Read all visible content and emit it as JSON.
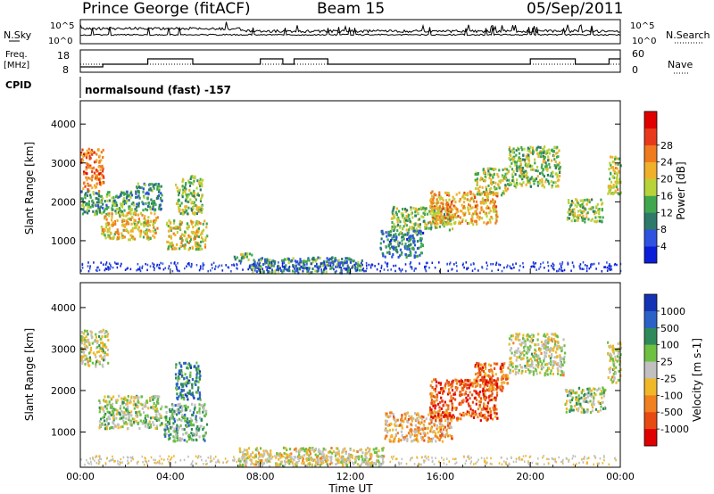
{
  "header": {
    "station": "Prince George (fitACF)",
    "beam": "Beam 15",
    "date": "05/Sep/2011"
  },
  "top_panels": {
    "nsky_label": "N.Sky",
    "nsearch_label": "N.Search",
    "top_tick_exp": "10^5",
    "bottom_tick_exp": "10^0",
    "freq_label_1": "Freq.",
    "freq_label_2": "[MHz]",
    "freq_ticks": [
      "18",
      "8"
    ],
    "nave_label": "Nave",
    "nave_ticks": [
      "60",
      "0"
    ],
    "cpid_label": "CPID",
    "cpid_text": "normalsound (fast) -157"
  },
  "chart_data": [
    {
      "type": "heatmap",
      "name": "power",
      "ylabel": "Slant Range [km]",
      "yticks": [
        1000,
        2000,
        3000,
        4000
      ],
      "ylim": [
        150,
        4600
      ],
      "xlim_hours": [
        0,
        24
      ],
      "colorbar": {
        "label": "Power [dB]",
        "ticks": [
          "4",
          "8",
          "12",
          "16",
          "20",
          "24",
          "28"
        ],
        "colors": [
          "#0a1ed8",
          "#2f52e0",
          "#2e7a6a",
          "#3fa84f",
          "#b8d33a",
          "#f0b02a",
          "#f07a1e",
          "#e83a1a",
          "#e00000"
        ]
      },
      "regions": [
        {
          "t": [
            0.0,
            1.0
          ],
          "r": [
            2300,
            3400
          ],
          "level": 0.75
        },
        {
          "t": [
            0.0,
            2.4
          ],
          "r": [
            1700,
            2300
          ],
          "level": 0.35
        },
        {
          "t": [
            0.9,
            3.4
          ],
          "r": [
            1050,
            1750
          ],
          "level": 0.6
        },
        {
          "t": [
            2.4,
            3.6
          ],
          "r": [
            1800,
            2500
          ],
          "level": 0.3
        },
        {
          "t": [
            3.8,
            5.6
          ],
          "r": [
            800,
            1550
          ],
          "level": 0.55
        },
        {
          "t": [
            4.2,
            5.4
          ],
          "r": [
            1700,
            2700
          ],
          "level": 0.45
        },
        {
          "t": [
            6.8,
            7.6
          ],
          "r": [
            500,
            700
          ],
          "level": 0.4
        },
        {
          "t": [
            7.5,
            12.5
          ],
          "r": [
            200,
            600
          ],
          "level": 0.3
        },
        {
          "t": [
            13.3,
            15.2
          ],
          "r": [
            600,
            1300
          ],
          "level": 0.25
        },
        {
          "t": [
            13.8,
            16.5
          ],
          "r": [
            1300,
            1900
          ],
          "level": 0.45
        },
        {
          "t": [
            15.5,
            18.5
          ],
          "r": [
            1450,
            2300
          ],
          "level": 0.65
        },
        {
          "t": [
            17.5,
            19.0
          ],
          "r": [
            2200,
            2900
          ],
          "level": 0.5
        },
        {
          "t": [
            19.0,
            21.3
          ],
          "r": [
            2400,
            3450
          ],
          "level": 0.45
        },
        {
          "t": [
            21.6,
            23.2
          ],
          "r": [
            1500,
            2100
          ],
          "level": 0.45
        },
        {
          "t": [
            23.4,
            24.0
          ],
          "r": [
            2200,
            3200
          ],
          "level": 0.5
        }
      ]
    },
    {
      "type": "heatmap",
      "name": "velocity",
      "ylabel": "Slant Range [km]",
      "yticks": [
        1000,
        2000,
        3000,
        4000
      ],
      "ylim": [
        150,
        4600
      ],
      "xlim_hours": [
        0,
        24
      ],
      "xticks": [
        "00:00",
        "04:00",
        "08:00",
        "12:00",
        "16:00",
        "20:00",
        "00:00"
      ],
      "xlabel": "Time UT",
      "colorbar": {
        "label": "Velocity [m s-1]",
        "ticks": [
          "1000",
          "500",
          "100",
          "25",
          "-25",
          "-100",
          "-500",
          "-1000"
        ],
        "colors": [
          "#1432b4",
          "#2a62c8",
          "#2e8a5a",
          "#6ec040",
          "#c0c0c0",
          "#f0b828",
          "#f08020",
          "#e84a14",
          "#e00000"
        ]
      },
      "regions": [
        {
          "t": [
            0.0,
            1.2
          ],
          "r": [
            2600,
            3500
          ],
          "level": 0.5
        },
        {
          "t": [
            0.8,
            3.6
          ],
          "r": [
            1100,
            1900
          ],
          "level": 0.45
        },
        {
          "t": [
            3.7,
            5.6
          ],
          "r": [
            800,
            1700
          ],
          "level": 0.35
        },
        {
          "t": [
            4.2,
            5.3
          ],
          "r": [
            1800,
            2700
          ],
          "level": 0.2
        },
        {
          "t": [
            7.0,
            13.5
          ],
          "r": [
            200,
            650
          ],
          "level": 0.55
        },
        {
          "t": [
            13.5,
            16.5
          ],
          "r": [
            800,
            1500
          ],
          "level": 0.65
        },
        {
          "t": [
            15.5,
            18.5
          ],
          "r": [
            1300,
            2300
          ],
          "level": 0.85
        },
        {
          "t": [
            17.5,
            19.0
          ],
          "r": [
            2000,
            2700
          ],
          "level": 0.8
        },
        {
          "t": [
            19.0,
            21.5
          ],
          "r": [
            2400,
            3400
          ],
          "level": 0.5
        },
        {
          "t": [
            21.5,
            23.3
          ],
          "r": [
            1500,
            2100
          ],
          "level": 0.45
        },
        {
          "t": [
            23.4,
            24.0
          ],
          "r": [
            2200,
            3200
          ],
          "level": 0.5
        }
      ]
    }
  ]
}
